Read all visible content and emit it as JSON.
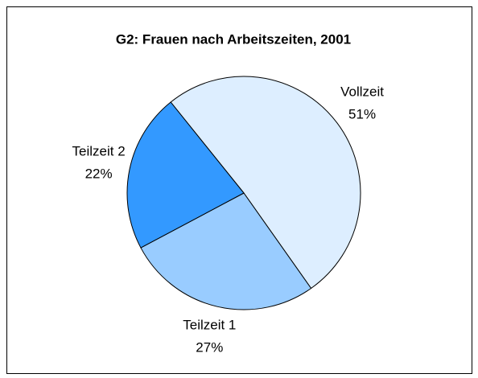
{
  "chart_data": {
    "type": "pie",
    "title": "G2: Frauen nach Arbeitszeiten, 2001",
    "categories": [
      "Vollzeit",
      "Teilzeit 1",
      "Teilzeit 2"
    ],
    "values": [
      51,
      27,
      22
    ],
    "value_labels": [
      "51%",
      "27%",
      "22%"
    ],
    "colors": [
      "#ddeeff",
      "#99ccff",
      "#3399ff"
    ]
  }
}
